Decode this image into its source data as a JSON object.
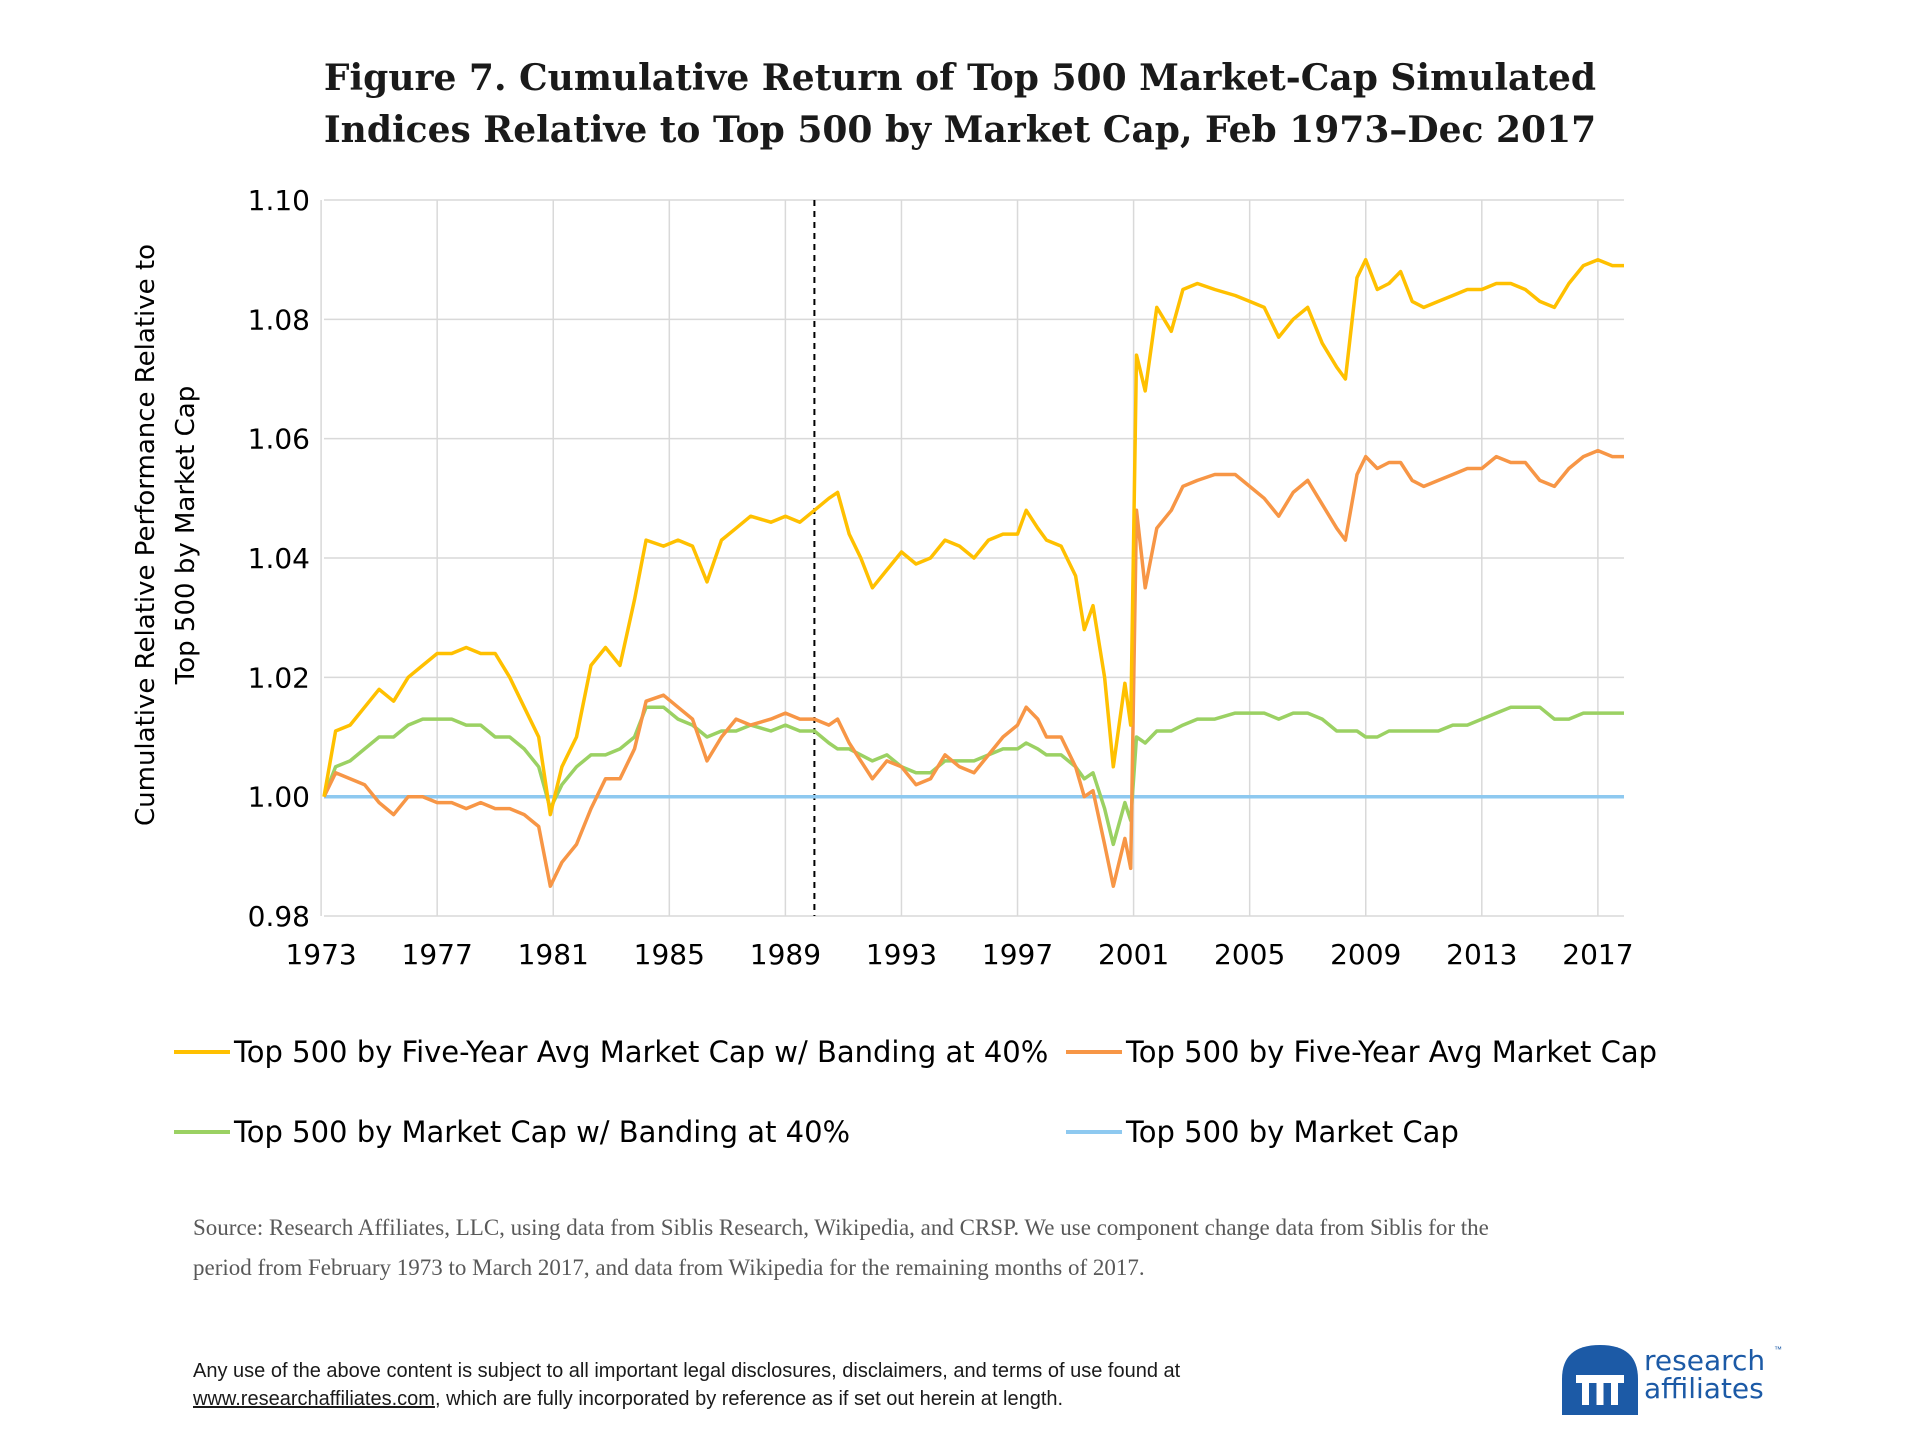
{
  "title_line1": "Figure 7. Cumulative Return of Top 500 Market-Cap Simulated",
  "title_line2": "Indices Relative to Top 500 by Market Cap, Feb 1973–Dec 2017",
  "chart_data": {
    "type": "line",
    "ylabel_line1": "Cumulative Relative Performance Relative to",
    "ylabel_line2": "Top 500 by Market Cap",
    "xlim": [
      1973.1,
      2017.9
    ],
    "ylim": [
      0.98,
      1.1
    ],
    "yticks": [
      0.98,
      1.0,
      1.02,
      1.04,
      1.06,
      1.08,
      1.1
    ],
    "ytick_labels": [
      "0.98",
      "1.00",
      "1.02",
      "1.04",
      "1.06",
      "1.08",
      "1.10"
    ],
    "xticks": [
      1973,
      1977,
      1981,
      1985,
      1989,
      1993,
      1997,
      2001,
      2005,
      2009,
      2013,
      2017
    ],
    "xtick_labels": [
      "1973",
      "1977",
      "1981",
      "1985",
      "1989",
      "1993",
      "1997",
      "2001",
      "2005",
      "2009",
      "2013",
      "2017"
    ],
    "grid": true,
    "vline": 1990,
    "series": [
      {
        "name": "Top 500 by Five-Year Avg Market Cap w/ Banding at 40%",
        "color": "#ffc000",
        "x": [
          1973.1,
          1973.5,
          1974.0,
          1974.5,
          1975.0,
          1975.5,
          1976.0,
          1976.5,
          1977.0,
          1977.5,
          1978.0,
          1978.5,
          1979.0,
          1979.5,
          1980.0,
          1980.5,
          1980.9,
          1981.3,
          1981.8,
          1982.3,
          1982.8,
          1983.3,
          1983.8,
          1984.2,
          1984.8,
          1985.3,
          1985.8,
          1986.3,
          1986.8,
          1987.3,
          1987.8,
          1988.5,
          1989.0,
          1989.5,
          1990.0,
          1990.5,
          1990.8,
          1991.2,
          1991.6,
          1992.0,
          1992.5,
          1993.0,
          1993.5,
          1994.0,
          1994.5,
          1995.0,
          1995.5,
          1996.0,
          1996.5,
          1997.0,
          1997.3,
          1997.7,
          1998.0,
          1998.5,
          1999.0,
          1999.3,
          1999.6,
          2000.0,
          2000.3,
          2000.7,
          2000.9,
          2001.1,
          2001.4,
          2001.8,
          2002.3,
          2002.7,
          2003.2,
          2003.8,
          2004.5,
          2005.0,
          2005.5,
          2006.0,
          2006.5,
          2007.0,
          2007.5,
          2008.0,
          2008.3,
          2008.7,
          2009.0,
          2009.4,
          2009.8,
          2010.2,
          2010.6,
          2011.0,
          2011.5,
          2012.0,
          2012.5,
          2013.0,
          2013.5,
          2014.0,
          2014.5,
          2015.0,
          2015.5,
          2016.0,
          2016.5,
          2017.0,
          2017.5,
          2017.9
        ],
        "y": [
          1.0,
          1.011,
          1.012,
          1.015,
          1.018,
          1.016,
          1.02,
          1.022,
          1.024,
          1.024,
          1.025,
          1.024,
          1.024,
          1.02,
          1.015,
          1.01,
          0.997,
          1.005,
          1.01,
          1.022,
          1.025,
          1.022,
          1.033,
          1.043,
          1.042,
          1.043,
          1.042,
          1.036,
          1.043,
          1.045,
          1.047,
          1.046,
          1.047,
          1.046,
          1.048,
          1.05,
          1.051,
          1.044,
          1.04,
          1.035,
          1.038,
          1.041,
          1.039,
          1.04,
          1.043,
          1.042,
          1.04,
          1.043,
          1.044,
          1.044,
          1.048,
          1.045,
          1.043,
          1.042,
          1.037,
          1.028,
          1.032,
          1.02,
          1.005,
          1.019,
          1.012,
          1.074,
          1.068,
          1.082,
          1.078,
          1.085,
          1.086,
          1.085,
          1.084,
          1.083,
          1.082,
          1.077,
          1.08,
          1.082,
          1.076,
          1.072,
          1.07,
          1.087,
          1.09,
          1.085,
          1.086,
          1.088,
          1.083,
          1.082,
          1.083,
          1.084,
          1.085,
          1.085,
          1.086,
          1.086,
          1.085,
          1.083,
          1.082,
          1.086,
          1.089,
          1.09,
          1.089,
          1.089
        ]
      },
      {
        "name": "Top 500 by Five-Year Avg Market Cap",
        "color": "#f79646",
        "x": [
          1973.1,
          1973.5,
          1974.0,
          1974.5,
          1975.0,
          1975.5,
          1976.0,
          1976.5,
          1977.0,
          1977.5,
          1978.0,
          1978.5,
          1979.0,
          1979.5,
          1980.0,
          1980.5,
          1980.9,
          1981.3,
          1981.8,
          1982.3,
          1982.8,
          1983.3,
          1983.8,
          1984.2,
          1984.8,
          1985.3,
          1985.8,
          1986.3,
          1986.8,
          1987.3,
          1987.8,
          1988.5,
          1989.0,
          1989.5,
          1990.0,
          1990.5,
          1990.8,
          1991.2,
          1991.6,
          1992.0,
          1992.5,
          1993.0,
          1993.5,
          1994.0,
          1994.5,
          1995.0,
          1995.5,
          1996.0,
          1996.5,
          1997.0,
          1997.3,
          1997.7,
          1998.0,
          1998.5,
          1999.0,
          1999.3,
          1999.6,
          2000.0,
          2000.3,
          2000.7,
          2000.9,
          2001.1,
          2001.4,
          2001.8,
          2002.3,
          2002.7,
          2003.2,
          2003.8,
          2004.5,
          2005.0,
          2005.5,
          2006.0,
          2006.5,
          2007.0,
          2007.5,
          2008.0,
          2008.3,
          2008.7,
          2009.0,
          2009.4,
          2009.8,
          2010.2,
          2010.6,
          2011.0,
          2011.5,
          2012.0,
          2012.5,
          2013.0,
          2013.5,
          2014.0,
          2014.5,
          2015.0,
          2015.5,
          2016.0,
          2016.5,
          2017.0,
          2017.5,
          2017.9
        ],
        "y": [
          1.0,
          1.004,
          1.003,
          1.002,
          0.999,
          0.997,
          1.0,
          1.0,
          0.999,
          0.999,
          0.998,
          0.999,
          0.998,
          0.998,
          0.997,
          0.995,
          0.985,
          0.989,
          0.992,
          0.998,
          1.003,
          1.003,
          1.008,
          1.016,
          1.017,
          1.015,
          1.013,
          1.006,
          1.01,
          1.013,
          1.012,
          1.013,
          1.014,
          1.013,
          1.013,
          1.012,
          1.013,
          1.009,
          1.006,
          1.003,
          1.006,
          1.005,
          1.002,
          1.003,
          1.007,
          1.005,
          1.004,
          1.007,
          1.01,
          1.012,
          1.015,
          1.013,
          1.01,
          1.01,
          1.005,
          1.0,
          1.001,
          0.992,
          0.985,
          0.993,
          0.988,
          1.048,
          1.035,
          1.045,
          1.048,
          1.052,
          1.053,
          1.054,
          1.054,
          1.052,
          1.05,
          1.047,
          1.051,
          1.053,
          1.049,
          1.045,
          1.043,
          1.054,
          1.057,
          1.055,
          1.056,
          1.056,
          1.053,
          1.052,
          1.053,
          1.054,
          1.055,
          1.055,
          1.057,
          1.056,
          1.056,
          1.053,
          1.052,
          1.055,
          1.057,
          1.058,
          1.057,
          1.057
        ]
      },
      {
        "name": "Top 500 by Market Cap w/ Banding at 40%",
        "color": "#9bd163",
        "x": [
          1973.1,
          1973.5,
          1974.0,
          1974.5,
          1975.0,
          1975.5,
          1976.0,
          1976.5,
          1977.0,
          1977.5,
          1978.0,
          1978.5,
          1979.0,
          1979.5,
          1980.0,
          1980.5,
          1980.9,
          1981.3,
          1981.8,
          1982.3,
          1982.8,
          1983.3,
          1983.8,
          1984.2,
          1984.8,
          1985.3,
          1985.8,
          1986.3,
          1986.8,
          1987.3,
          1987.8,
          1988.5,
          1989.0,
          1989.5,
          1990.0,
          1990.5,
          1990.8,
          1991.2,
          1991.6,
          1992.0,
          1992.5,
          1993.0,
          1993.5,
          1994.0,
          1994.5,
          1995.0,
          1995.5,
          1996.0,
          1996.5,
          1997.0,
          1997.3,
          1997.7,
          1998.0,
          1998.5,
          1999.0,
          1999.3,
          1999.6,
          2000.0,
          2000.3,
          2000.7,
          2000.9,
          2001.1,
          2001.4,
          2001.8,
          2002.3,
          2002.7,
          2003.2,
          2003.8,
          2004.5,
          2005.0,
          2005.5,
          2006.0,
          2006.5,
          2007.0,
          2007.5,
          2008.0,
          2008.3,
          2008.7,
          2009.0,
          2009.4,
          2009.8,
          2010.2,
          2010.6,
          2011.0,
          2011.5,
          2012.0,
          2012.5,
          2013.0,
          2013.5,
          2014.0,
          2014.5,
          2015.0,
          2015.5,
          2016.0,
          2016.5,
          2017.0,
          2017.5,
          2017.9
        ],
        "y": [
          1.0,
          1.005,
          1.006,
          1.008,
          1.01,
          1.01,
          1.012,
          1.013,
          1.013,
          1.013,
          1.012,
          1.012,
          1.01,
          1.01,
          1.008,
          1.005,
          0.998,
          1.002,
          1.005,
          1.007,
          1.007,
          1.008,
          1.01,
          1.015,
          1.015,
          1.013,
          1.012,
          1.01,
          1.011,
          1.011,
          1.012,
          1.011,
          1.012,
          1.011,
          1.011,
          1.009,
          1.008,
          1.008,
          1.007,
          1.006,
          1.007,
          1.005,
          1.004,
          1.004,
          1.006,
          1.006,
          1.006,
          1.007,
          1.008,
          1.008,
          1.009,
          1.008,
          1.007,
          1.007,
          1.005,
          1.003,
          1.004,
          0.998,
          0.992,
          0.999,
          0.996,
          1.01,
          1.009,
          1.011,
          1.011,
          1.012,
          1.013,
          1.013,
          1.014,
          1.014,
          1.014,
          1.013,
          1.014,
          1.014,
          1.013,
          1.011,
          1.011,
          1.011,
          1.01,
          1.01,
          1.011,
          1.011,
          1.011,
          1.011,
          1.011,
          1.012,
          1.012,
          1.013,
          1.014,
          1.015,
          1.015,
          1.015,
          1.013,
          1.013,
          1.014,
          1.014,
          1.014,
          1.014
        ]
      },
      {
        "name": "Top 500 by Market Cap",
        "color": "#8ec9f0",
        "x": [
          1973.1,
          2017.9
        ],
        "y": [
          1.0,
          1.0
        ]
      }
    ]
  },
  "source_line1": "Source: Research Affiliates, LLC, using data from Siblis Research, Wikipedia, and CRSP. We use component change data from Siblis for the",
  "source_line2": "period from February 1973 to March 2017, and data from Wikipedia for the remaining months of 2017.",
  "disclaimer_line1": "Any use of the above content is subject to all important legal disclosures, disclaimers, and terms of use found at",
  "disclaimer_link": "www.researchaffiliates.com",
  "disclaimer_line2_rest": ", which are fully incorporated by reference as if set out herein at length.",
  "logo_line1": "research",
  "logo_line2": "affiliates",
  "logo_tm": "™",
  "colors": {
    "logo_blue": "#1c5aa6"
  }
}
